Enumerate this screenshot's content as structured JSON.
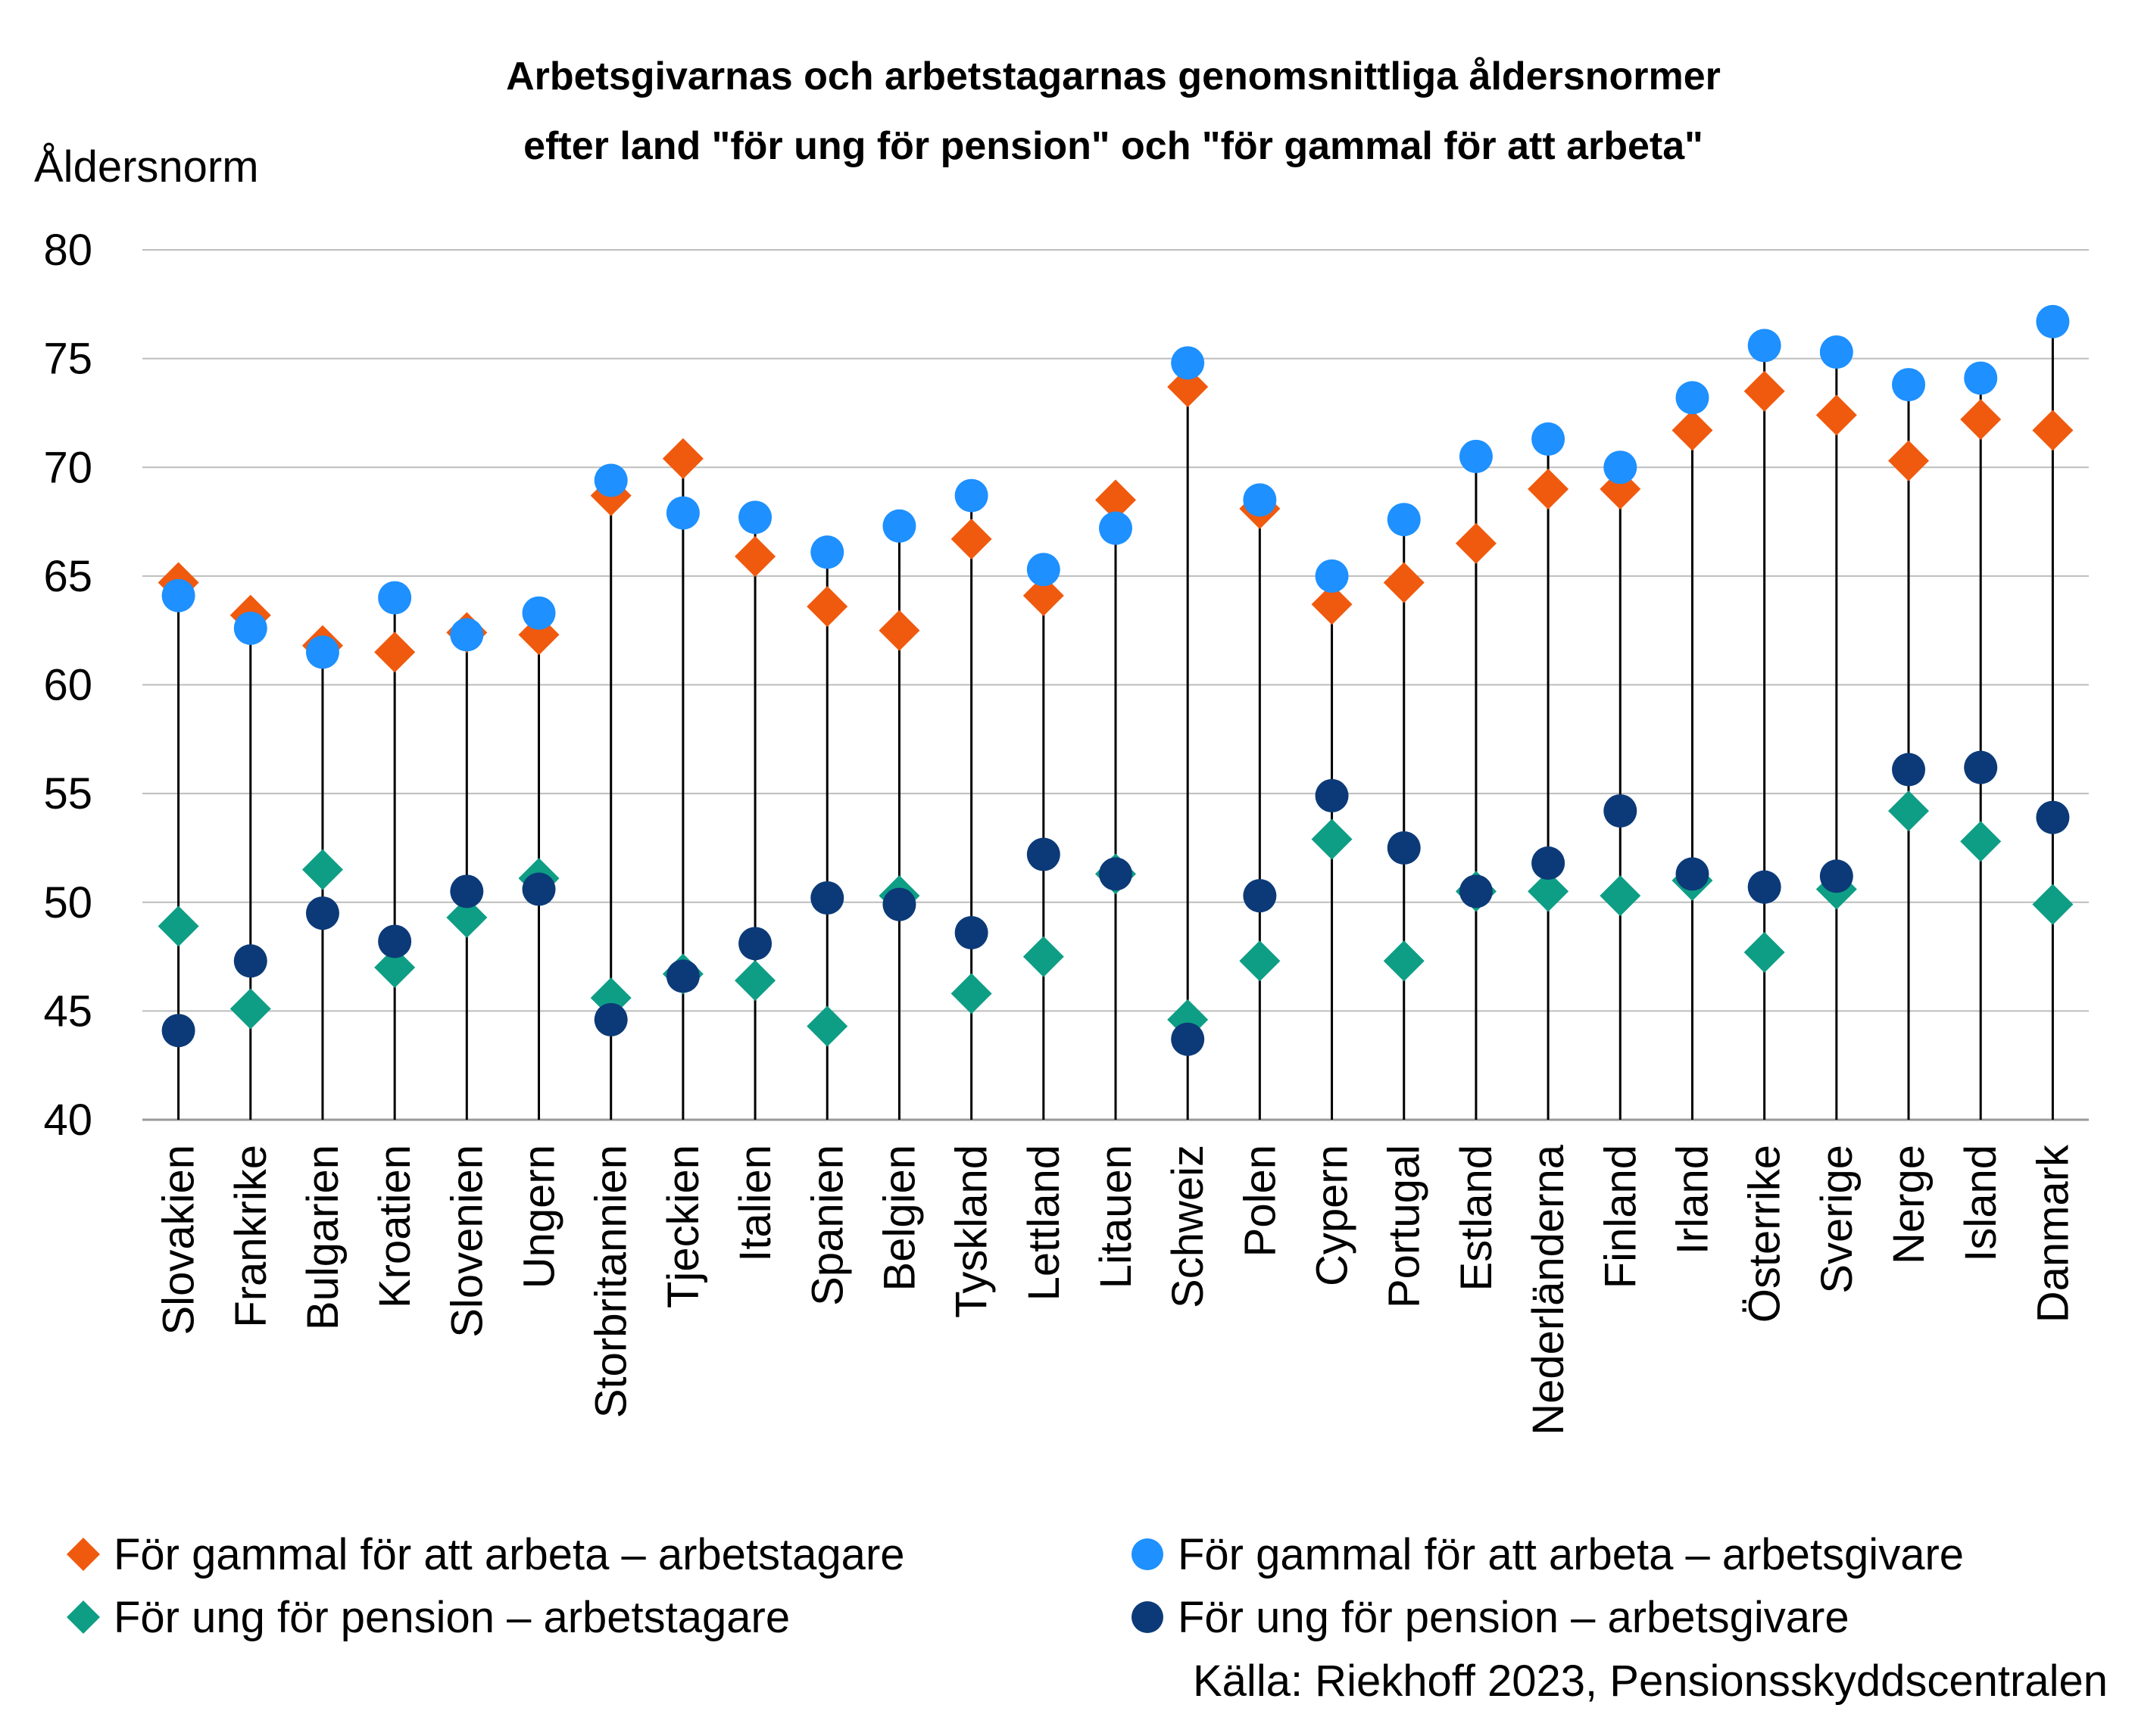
{
  "chart_data": {
    "type": "scatter",
    "title_lines": [
      "Arbetsgivarnas och arbetstagarnas genomsnittliga åldersnormer",
      "efter land \"för ung för pension\" och \"för gammal för att arbeta\""
    ],
    "ylabel": "Åldersnorm",
    "ylim": [
      40,
      80
    ],
    "yticks": [
      "40",
      "45",
      "50",
      "55",
      "60",
      "65",
      "70",
      "75",
      "80"
    ],
    "grid": true,
    "legend_position": "bottom",
    "source": "Källa: Riekhoff 2023, Pensionsskyddscentralen",
    "categories": [
      "Slovakien",
      "Frankrike",
      "Bulgarien",
      "Kroatien",
      "Slovenien",
      "Ungern",
      "Storbritannien",
      "Tjeckien",
      "Italien",
      "Spanien",
      "Belgien",
      "Tyskland",
      "Lettland",
      "Litauen",
      "Schweiz",
      "Polen",
      "Cypern",
      "Portugal",
      "Estland",
      "Nederländerna",
      "Finland",
      "Irland",
      "Österrike",
      "Sverige",
      "Nerge",
      "Island",
      "Danmark"
    ],
    "series": [
      {
        "name": "För gammal för att arbeta – arbetstagare",
        "marker": "diamond",
        "color": "#F05A0E",
        "values": [
          64.7,
          63.2,
          61.8,
          61.5,
          62.4,
          62.3,
          68.7,
          70.4,
          65.9,
          63.6,
          62.5,
          66.7,
          64.1,
          68.5,
          73.7,
          68.1,
          63.7,
          64.7,
          66.5,
          69.0,
          69.0,
          71.7,
          73.5,
          72.4,
          70.3,
          72.2,
          71.7
        ]
      },
      {
        "name": "För gammal för att arbeta – arbetsgivare",
        "marker": "circle",
        "color": "#1E90FF",
        "values": [
          64.1,
          62.6,
          61.5,
          64.0,
          62.3,
          63.3,
          69.4,
          67.9,
          67.7,
          66.1,
          67.3,
          68.7,
          65.3,
          67.2,
          74.8,
          68.5,
          65.0,
          67.6,
          70.5,
          71.3,
          70.0,
          73.2,
          75.6,
          75.3,
          73.8,
          74.1,
          76.7
        ]
      },
      {
        "name": "För ung för pension – arbetstagare",
        "marker": "diamond",
        "color": "#0E9E85",
        "values": [
          48.9,
          45.1,
          51.5,
          47.0,
          49.3,
          51.1,
          45.6,
          46.7,
          46.4,
          44.3,
          50.3,
          45.8,
          47.5,
          51.3,
          44.6,
          47.3,
          52.9,
          47.3,
          50.5,
          50.5,
          50.3,
          51.0,
          47.7,
          50.6,
          54.2,
          52.8,
          49.9
        ]
      },
      {
        "name": "För ung för pension – arbetsgivare",
        "marker": "circle",
        "color": "#0C3A78",
        "values": [
          44.1,
          47.3,
          49.5,
          48.2,
          50.5,
          50.6,
          44.6,
          46.6,
          48.1,
          50.2,
          49.9,
          48.6,
          52.2,
          51.3,
          43.7,
          50.3,
          54.9,
          52.5,
          50.5,
          51.8,
          54.2,
          51.3,
          50.7,
          51.2,
          56.1,
          56.2,
          53.9
        ]
      }
    ]
  }
}
